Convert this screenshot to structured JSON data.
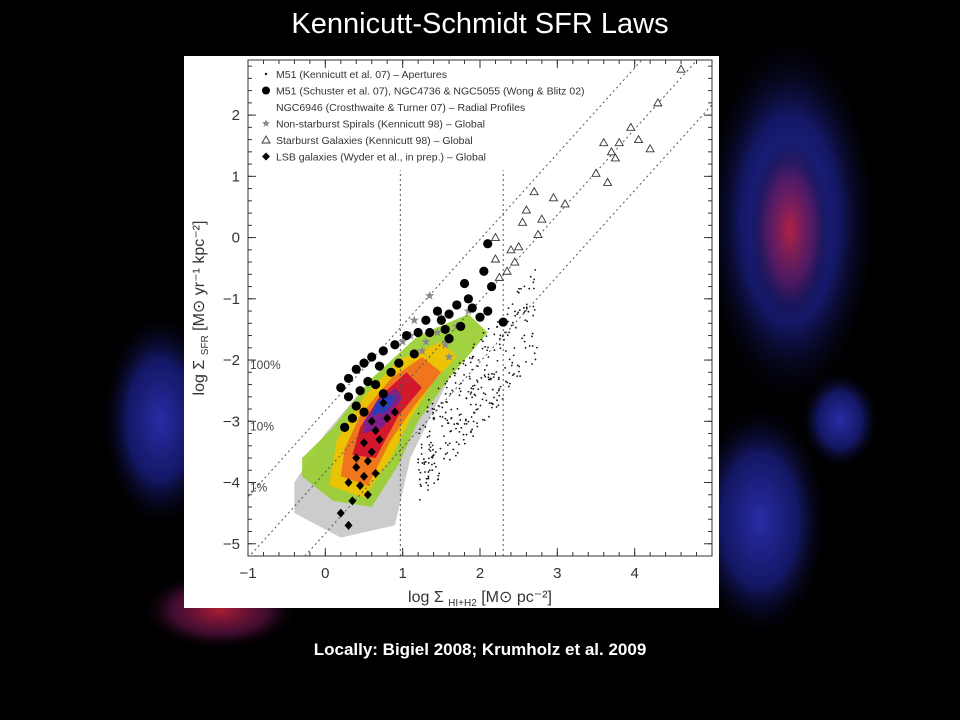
{
  "slide": {
    "title": "Kennicutt-Schmidt SFR Laws",
    "caption": "Locally: Bigiel 2008; Krumholz et al. 2009"
  },
  "colors": {
    "background": "#000000",
    "glow_blue": "#1a1f8a",
    "glow_red": "#a0182a"
  },
  "chart_data": {
    "type": "scatter",
    "xlabel": "log Σ_HI+H2 [M⊙ pc⁻²]",
    "ylabel": "log Σ_SFR [M⊙ yr⁻¹ kpc⁻²]",
    "xlabel_main": "log Σ",
    "xlabel_sub": "HI+H2",
    "xlabel_units": "[M⊙ pc⁻²]",
    "ylabel_main": "log Σ",
    "ylabel_sub": "SFR",
    "ylabel_units": "[M⊙ yr⁻¹ kpc⁻²]",
    "xlim": [
      -1,
      5
    ],
    "ylim": [
      -5.2,
      2.9
    ],
    "xticks": [
      -1,
      0,
      1,
      2,
      3,
      4
    ],
    "yticks": [
      -5,
      -4,
      -3,
      -2,
      -1,
      0,
      1,
      2
    ],
    "vertical_lines": [
      0.97,
      2.3
    ],
    "efficiency_lines": [
      {
        "label": "100%",
        "intercept": -2.83,
        "label_at": [
          -1,
          -2.15
        ]
      },
      {
        "label": "10%",
        "intercept": -3.83,
        "label_at": [
          -1,
          -3.15
        ]
      },
      {
        "label": "1%",
        "intercept": -4.83,
        "label_at": [
          -1,
          -4.15
        ]
      }
    ],
    "legend": [
      {
        "label": "M51 (Kennicutt et al. 07) – Apertures",
        "marker": "dot-small"
      },
      {
        "label": "M51 (Schuster et al. 07), NGC4736 & NGC5055 (Wong & Blitz 02)",
        "marker": "circle-filled"
      },
      {
        "label": "NGC6946 (Crosthwaite & Turner 07) – Radial Profiles",
        "marker": "none"
      },
      {
        "label": "Non-starburst Spirals (Kennicutt 98) – Global",
        "marker": "star"
      },
      {
        "label": "Starburst Galaxies (Kennicutt 98) – Global",
        "marker": "triangle-open"
      },
      {
        "label": "LSB galaxies (Wyder et al., in prep.) – Global",
        "marker": "diamond-filled"
      }
    ],
    "series": [
      {
        "name": "Starburst Galaxies (Kennicutt 98) – Global",
        "marker": "triangle-open",
        "points": [
          [
            4.6,
            2.75
          ],
          [
            4.3,
            2.2
          ],
          [
            3.95,
            1.8
          ],
          [
            4.05,
            1.6
          ],
          [
            3.8,
            1.55
          ],
          [
            3.6,
            1.55
          ],
          [
            3.7,
            1.4
          ],
          [
            4.2,
            1.45
          ],
          [
            3.75,
            1.3
          ],
          [
            3.5,
            1.05
          ],
          [
            3.65,
            0.9
          ],
          [
            2.95,
            0.65
          ],
          [
            3.1,
            0.55
          ],
          [
            2.8,
            0.3
          ],
          [
            2.7,
            0.75
          ],
          [
            2.6,
            0.45
          ],
          [
            2.55,
            0.25
          ],
          [
            2.75,
            0.05
          ],
          [
            2.5,
            -0.15
          ],
          [
            2.4,
            -0.2
          ],
          [
            2.45,
            -0.4
          ],
          [
            2.35,
            -0.55
          ],
          [
            2.25,
            -0.65
          ],
          [
            2.2,
            -0.35
          ],
          [
            2.2,
            0.0
          ]
        ]
      },
      {
        "name": "Non-starburst Spirals (Kennicutt 98) – Global",
        "marker": "star",
        "points": [
          [
            1.35,
            -0.95
          ],
          [
            1.15,
            -1.35
          ],
          [
            1.45,
            -1.55
          ],
          [
            1.1,
            -1.6
          ],
          [
            1.7,
            -1.45
          ],
          [
            1.5,
            -1.3
          ],
          [
            1.85,
            -1.2
          ],
          [
            1.3,
            -1.7
          ],
          [
            1.55,
            -1.75
          ],
          [
            1.25,
            -1.85
          ],
          [
            1.0,
            -1.7
          ],
          [
            1.6,
            -1.95
          ]
        ]
      },
      {
        "name": "M51 (Schuster et al. 07), NGC4736 & NGC5055 (Wong & Blitz 02)",
        "marker": "circle-filled",
        "points": [
          [
            2.1,
            -0.1
          ],
          [
            2.05,
            -0.55
          ],
          [
            2.15,
            -0.8
          ],
          [
            1.85,
            -1.0
          ],
          [
            1.7,
            -1.1
          ],
          [
            1.6,
            -1.25
          ],
          [
            1.45,
            -1.2
          ],
          [
            1.3,
            -1.35
          ],
          [
            1.55,
            -1.5
          ],
          [
            1.75,
            -1.45
          ],
          [
            2.0,
            -1.3
          ],
          [
            2.3,
            -1.38
          ],
          [
            1.2,
            -1.55
          ],
          [
            1.05,
            -1.6
          ],
          [
            0.9,
            -1.75
          ],
          [
            0.75,
            -1.85
          ],
          [
            0.6,
            -1.95
          ],
          [
            0.5,
            -2.05
          ],
          [
            0.4,
            -2.15
          ],
          [
            0.3,
            -2.3
          ],
          [
            0.2,
            -2.45
          ],
          [
            0.3,
            -2.6
          ],
          [
            0.4,
            -2.75
          ],
          [
            0.5,
            -2.85
          ],
          [
            0.35,
            -2.95
          ],
          [
            0.25,
            -3.1
          ],
          [
            1.35,
            -1.55
          ],
          [
            1.15,
            -1.9
          ],
          [
            0.95,
            -2.05
          ],
          [
            0.85,
            -2.2
          ],
          [
            0.65,
            -2.4
          ],
          [
            0.75,
            -2.55
          ],
          [
            1.5,
            -1.35
          ],
          [
            1.6,
            -1.65
          ],
          [
            0.55,
            -2.35
          ],
          [
            0.45,
            -2.5
          ],
          [
            0.7,
            -2.1
          ],
          [
            1.9,
            -1.15
          ],
          [
            1.8,
            -0.75
          ],
          [
            2.1,
            -1.2
          ]
        ]
      },
      {
        "name": "LSB galaxies (Wyder et al., in prep.) – Global",
        "marker": "diamond-filled",
        "points": [
          [
            0.3,
            -4.7
          ],
          [
            0.2,
            -4.5
          ],
          [
            0.35,
            -4.3
          ],
          [
            0.45,
            -4.05
          ],
          [
            0.5,
            -3.9
          ],
          [
            0.4,
            -3.75
          ],
          [
            0.55,
            -3.65
          ],
          [
            0.6,
            -3.5
          ],
          [
            0.5,
            -3.35
          ],
          [
            0.7,
            -3.3
          ],
          [
            0.65,
            -3.15
          ],
          [
            0.8,
            -2.95
          ],
          [
            0.9,
            -2.85
          ],
          [
            0.75,
            -2.7
          ],
          [
            0.6,
            -3.0
          ],
          [
            0.4,
            -3.6
          ],
          [
            0.3,
            -4.0
          ],
          [
            0.65,
            -3.85
          ],
          [
            0.55,
            -4.2
          ]
        ]
      }
    ]
  }
}
